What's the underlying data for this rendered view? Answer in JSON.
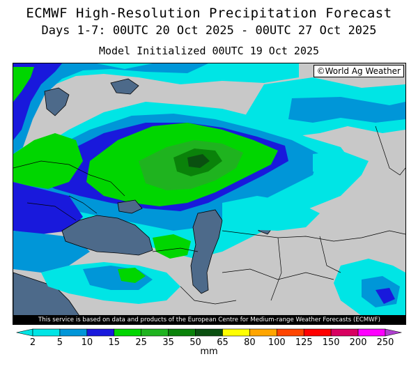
{
  "header": {
    "title": "ECMWF High-Resolution Precipitation Forecast",
    "period": "Days 1-7: 00UTC 20 Oct 2025 - 00UTC 27 Oct 2025",
    "initialized": "Model Initialized 00UTC 19 Oct 2025"
  },
  "map": {
    "credit": "©World Ag Weather",
    "land_color": "#c8c8c8",
    "water_color": "#4d6a8a"
  },
  "footer": {
    "disclaimer": "This service is based on data and products of the European Centre for Medium-range Weather Forecasts (ECMWF)"
  },
  "legend": {
    "unit": "mm",
    "ticks": [
      "2",
      "5",
      "10",
      "15",
      "25",
      "35",
      "50",
      "65",
      "80",
      "100",
      "125",
      "150",
      "200",
      "250"
    ],
    "colors": [
      "#00e5e5",
      "#0096d8",
      "#1919dc",
      "#00d600",
      "#1fb31f",
      "#0a820a",
      "#0a5010",
      "#ffff00",
      "#ffa500",
      "#ff4500",
      "#ff0000",
      "#d80060",
      "#ff00ff",
      "#b040d0"
    ]
  }
}
